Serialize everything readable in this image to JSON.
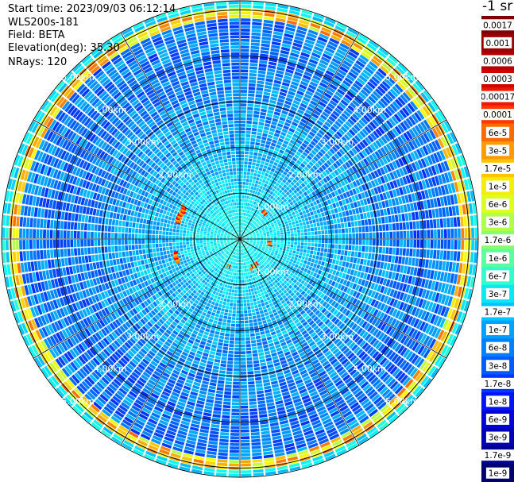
{
  "info": {
    "start_time": "Start time: 2023/09/03 06:12:14",
    "instrument": "WLS200s-181",
    "field": "Field: BETA",
    "elevation": "Elevation(deg): 35.30",
    "nrays": "NRays: 120"
  },
  "colorbar": {
    "unit_label": "-1 sr",
    "ticks": [
      {
        "label": "0.0017",
        "color": "#800000"
      },
      {
        "label": "0.001",
        "color": "#9a0000"
      },
      {
        "label": "0.0006",
        "color": "#b40000"
      },
      {
        "label": "0.0003",
        "color": "#d40000"
      },
      {
        "label": "0.00017",
        "color": "#ee1800"
      },
      {
        "label": "0.0001",
        "color": "#ff3800"
      },
      {
        "label": "6e-5",
        "color": "#ff6a00"
      },
      {
        "label": "3e-5",
        "color": "#ff9a00"
      },
      {
        "label": "1.7e-5",
        "color": "#ffc400"
      },
      {
        "label": "1e-5",
        "color": "#f2ed0a"
      },
      {
        "label": "6e-6",
        "color": "#dcff1c"
      },
      {
        "label": "3e-6",
        "color": "#b0ff48"
      },
      {
        "label": "1.7e-6",
        "color": "#88ff70"
      },
      {
        "label": "1e-6",
        "color": "#5cffa0"
      },
      {
        "label": "6e-7",
        "color": "#30ffcc"
      },
      {
        "label": "3e-7",
        "color": "#0ae8f4"
      },
      {
        "label": "1.7e-7",
        "color": "#00c4ff"
      },
      {
        "label": "1e-7",
        "color": "#00a0ff"
      },
      {
        "label": "6e-8",
        "color": "#0080ff"
      },
      {
        "label": "3e-8",
        "color": "#005cff"
      },
      {
        "label": "1.7e-8",
        "color": "#0038ff"
      },
      {
        "label": "1e-8",
        "color": "#0014f4"
      },
      {
        "label": "6e-9",
        "color": "#0000d8"
      },
      {
        "label": "3e-9",
        "color": "#0000b4"
      },
      {
        "label": "1.7e-9",
        "color": "#000090"
      },
      {
        "label": "1e-9",
        "color": "#000070"
      }
    ]
  },
  "range_rings": {
    "labels": [
      "1.00km",
      "2.00km",
      "3.00km",
      "4.00km",
      "5.00km"
    ]
  },
  "scan": {
    "rays": 120,
    "gates": 70,
    "max_range_km": 5.2,
    "field_colormap": "jet",
    "hotspot_colors": [
      "#ff0000",
      "#ff7800",
      "#ffb400"
    ]
  }
}
